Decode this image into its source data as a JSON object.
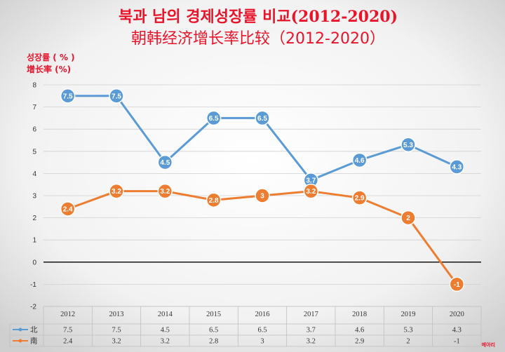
{
  "title_kr": "북과 남의 경제성장률 비교(2012-2020)",
  "title_cn": "朝韩经济增长率比较（2012-2020）",
  "unit_kr": "성장률 ( % )",
  "unit_cn": "增长率 (%)",
  "credit": "메아리",
  "colors": {
    "north": "#5b9bd5",
    "south": "#ed7d31",
    "title": "#e8142a",
    "zero_line": "#000000",
    "grid": "#d0d0d0"
  },
  "chart_data": {
    "type": "line",
    "categories": [
      "2012",
      "2013",
      "2014",
      "2015",
      "2016",
      "2017",
      "2018",
      "2019",
      "2020"
    ],
    "series": [
      {
        "name": "北",
        "values": [
          7.5,
          7.5,
          4.5,
          6.5,
          6.5,
          3.7,
          4.6,
          5.3,
          4.3
        ],
        "labels": [
          "7.5",
          "7.5",
          "4.5",
          "6.5",
          "6.5",
          "3.7",
          "4.6",
          "5.3",
          "4.3"
        ]
      },
      {
        "name": "南",
        "values": [
          2.4,
          3.2,
          3.2,
          2.8,
          3,
          3.2,
          2.9,
          2,
          -1
        ],
        "labels": [
          "2.4",
          "3.2",
          "3.2",
          "2.8",
          "3",
          "3.2",
          "2.9",
          "2",
          "-1"
        ]
      }
    ],
    "ylim": [
      -2,
      8
    ],
    "yticks": [
      "-2",
      "-1",
      "0",
      "1",
      "2",
      "3",
      "4",
      "5",
      "6",
      "7",
      "8"
    ],
    "grid": true,
    "data_table": true
  }
}
